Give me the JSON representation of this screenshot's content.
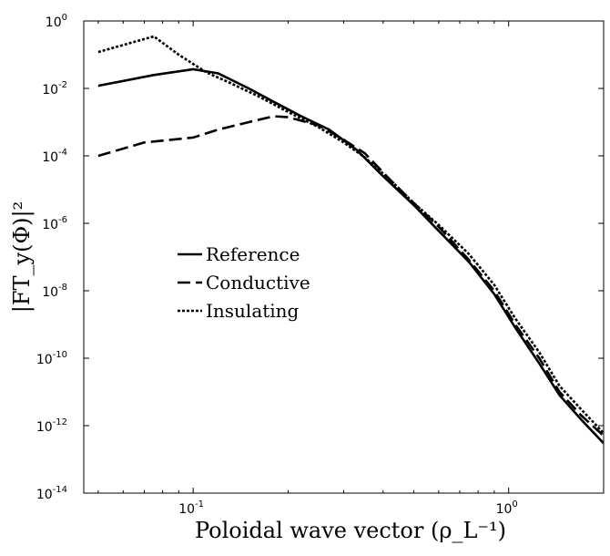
{
  "chart_data": {
    "type": "line",
    "xscale": "log",
    "yscale": "log",
    "xlim": [
      0.045,
      2.0
    ],
    "ylim": [
      1e-14,
      1
    ],
    "xlabel": "Poloidal wave vector (ρ_L⁻¹)",
    "ylabel": "|FT_y(Φ)|²",
    "x_ticks": [
      {
        "value": 0.1,
        "base": "10",
        "exp": "-1"
      },
      {
        "value": 1.0,
        "base": "10",
        "exp": "0"
      }
    ],
    "y_ticks": [
      {
        "value": 1,
        "base": "10",
        "exp": "0"
      },
      {
        "value": 0.01,
        "base": "10",
        "exp": "-2"
      },
      {
        "value": 0.0001,
        "base": "10",
        "exp": "-4"
      },
      {
        "value": 1e-06,
        "base": "10",
        "exp": "-6"
      },
      {
        "value": 1e-08,
        "base": "10",
        "exp": "-8"
      },
      {
        "value": 1e-10,
        "base": "10",
        "exp": "-10"
      },
      {
        "value": 1e-12,
        "base": "10",
        "exp": "-12"
      },
      {
        "value": 1e-14,
        "base": "10",
        "exp": "-14"
      }
    ],
    "legend_position": "center-left",
    "series": [
      {
        "name": "Reference",
        "dash": "solid",
        "x": [
          0.05,
          0.075,
          0.1,
          0.12,
          0.15,
          0.18,
          0.22,
          0.27,
          0.33,
          0.4,
          0.5,
          0.6,
          0.75,
          0.9,
          1.05,
          1.25,
          1.45,
          1.7,
          2.0
        ],
        "y": [
          0.012,
          0.025,
          0.037,
          0.028,
          0.01,
          0.004,
          0.0015,
          0.0006,
          0.00015,
          2.5e-05,
          3.5e-06,
          6e-07,
          7e-08,
          8e-09,
          8e-10,
          7e-11,
          8e-12,
          1.5e-12,
          3e-13
        ]
      },
      {
        "name": "Conductive",
        "dash": "dashed",
        "x": [
          0.05,
          0.07,
          0.1,
          0.12,
          0.15,
          0.18,
          0.2,
          0.25,
          0.3,
          0.35,
          0.42,
          0.5,
          0.6,
          0.75,
          0.9,
          1.05,
          1.25,
          1.45,
          1.7,
          2.0
        ],
        "y": [
          0.0001,
          0.00025,
          0.00035,
          0.0006,
          0.001,
          0.0015,
          0.0014,
          0.0008,
          0.0003,
          0.00012,
          2e-05,
          4e-06,
          8e-07,
          8e-08,
          1e-08,
          1e-09,
          1e-10,
          1e-11,
          2e-12,
          5e-13
        ]
      },
      {
        "name": "Insulating",
        "dash": "dotted",
        "x": [
          0.05,
          0.075,
          0.09,
          0.11,
          0.13,
          0.16,
          0.2,
          0.25,
          0.3,
          0.35,
          0.42,
          0.5,
          0.6,
          0.75,
          0.9,
          1.05,
          1.25,
          1.45,
          1.7,
          2.0
        ],
        "y": [
          0.12,
          0.35,
          0.1,
          0.03,
          0.015,
          0.006,
          0.002,
          0.0007,
          0.00025,
          9e-05,
          2e-05,
          4e-06,
          9e-07,
          1.2e-07,
          1.5e-08,
          1.5e-09,
          1.5e-10,
          1.5e-11,
          3e-12,
          6e-13
        ]
      }
    ]
  }
}
